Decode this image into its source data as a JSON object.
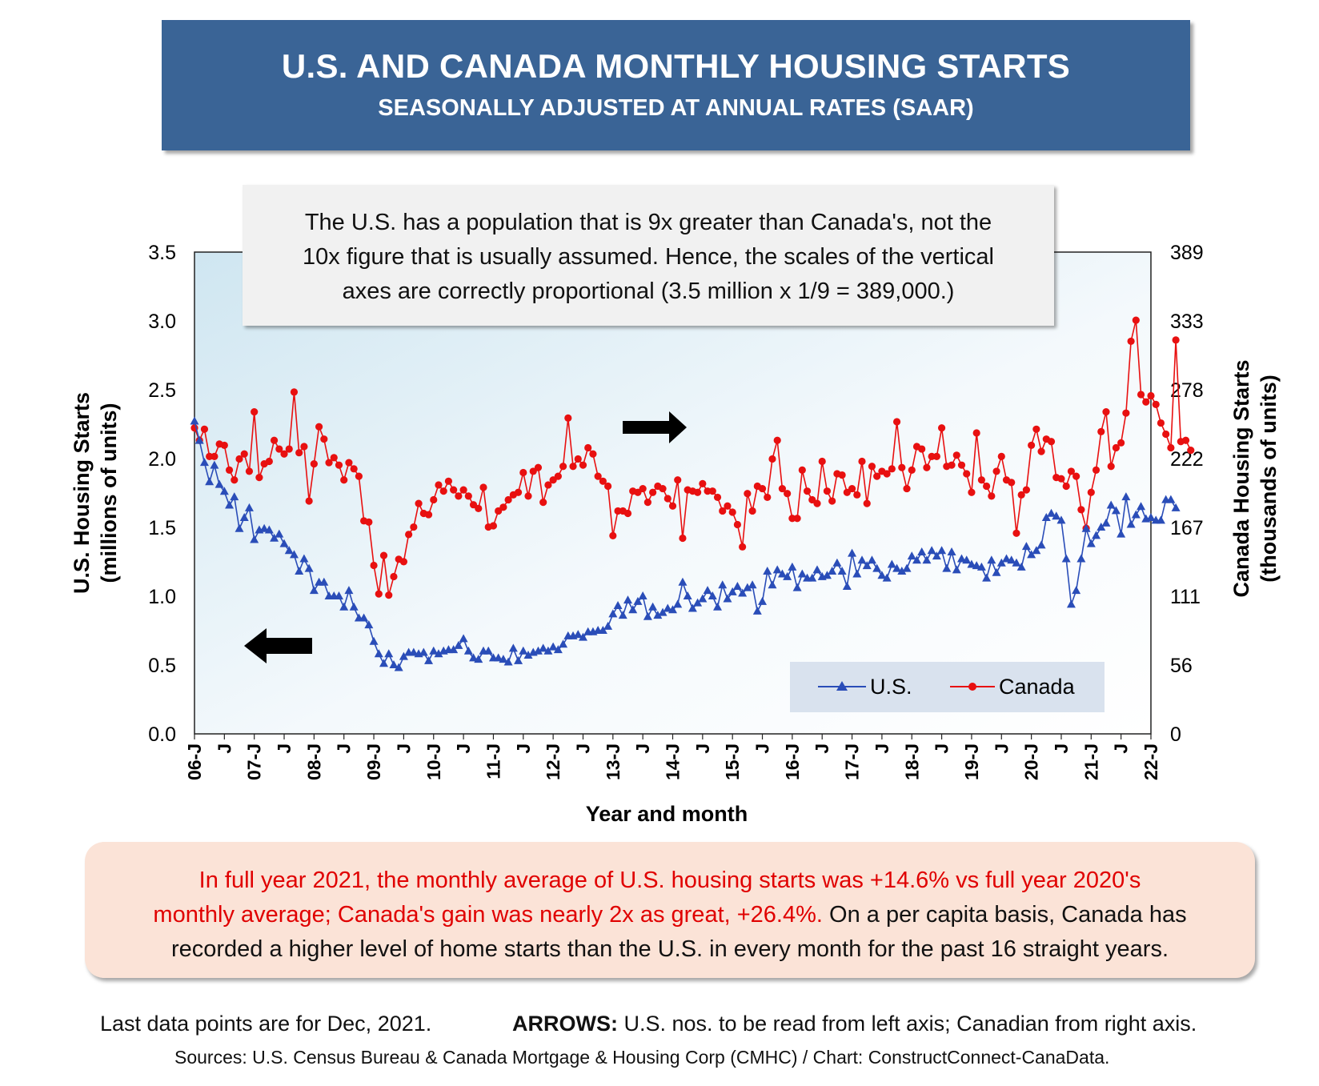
{
  "title": "U.S. AND CANADA MONTHLY HOUSING STARTS",
  "subtitle": "SEASONALLY ADJUSTED AT ANNUAL RATES (SAAR)",
  "note": {
    "line1": "The U.S. has a population that is 9x greater than Canada's, not the",
    "line2": "10x figure that is usually assumed. Hence, the scales of the  vertical",
    "line3": "axes are correctly proportional (3.5 million x 1/9 = 389,000.)"
  },
  "summary": {
    "red_line1": "In full year 2021, the monthly average of U.S. housing starts was +14.6% vs full year 2020's",
    "red_line2": "monthly average; Canada's gain was nearly 2x as great, +26.4%.",
    "black_line2": " On a per capita basis, Canada has",
    "black_line3": "recorded a higher level of home starts than the U.S. in every month for the past 16 straight  years."
  },
  "footer": {
    "last_data": "Last data points are for Dec, 2021.",
    "arrows_label": "ARROWS:",
    "arrows_text": " U.S. nos. to be read from left axis; Canadian from right axis.",
    "sources": "Sources: U.S. Census Bureau & Canada Mortgage & Housing Corp (CMHC) / Chart: ConstructConnect-CanaData."
  },
  "colors": {
    "title_bg": "#3a6496",
    "us_series": "#2a4db8",
    "canada_series": "#e81010",
    "summary_bg": "#fbe3d7"
  },
  "chart_data": {
    "type": "line",
    "xlabel": "Year and month",
    "ylabel_left_line1": "U.S. Housing Starts",
    "ylabel_left_line2": "(millions of units)",
    "ylabel_right_line1": "Canada Housing Starts",
    "ylabel_right_line2": "(thousands of units)",
    "x_ticks": [
      "06-J",
      "J",
      "07-J",
      "J",
      "08-J",
      "J",
      "09-J",
      "J",
      "10-J",
      "J",
      "11-J",
      "J",
      "12-J",
      "J",
      "13-J",
      "J",
      "14-J",
      "J",
      "15-J",
      "J",
      "16-J",
      "J",
      "17-J",
      "J",
      "18-J",
      "J",
      "19-J",
      "J",
      "20-J",
      "J",
      "21-J",
      "J",
      "22-J"
    ],
    "x_start": "2006-01",
    "x_end": "2022-01",
    "ylim_left": [
      0,
      3.5
    ],
    "yticks_left": [
      "0.0",
      "0.5",
      "1.0",
      "1.5",
      "2.0",
      "2.5",
      "3.0",
      "3.5"
    ],
    "ylim_right": [
      0,
      389
    ],
    "yticks_right": [
      "0",
      "56",
      "111",
      "167",
      "222",
      "278",
      "333",
      "389"
    ],
    "legend_position": "bottom-right",
    "series": [
      {
        "name": "U.S.",
        "marker": "triangle",
        "color": "#2a4db8",
        "axis": "left",
        "values": [
          2.27,
          2.13,
          1.97,
          1.83,
          1.95,
          1.81,
          1.76,
          1.66,
          1.72,
          1.49,
          1.57,
          1.64,
          1.41,
          1.48,
          1.49,
          1.48,
          1.42,
          1.45,
          1.38,
          1.33,
          1.3,
          1.18,
          1.27,
          1.2,
          1.04,
          1.1,
          1.1,
          1.0,
          1.0,
          1.0,
          0.92,
          1.04,
          0.92,
          0.84,
          0.84,
          0.79,
          0.67,
          0.58,
          0.51,
          0.58,
          0.5,
          0.48,
          0.56,
          0.59,
          0.59,
          0.58,
          0.59,
          0.53,
          0.6,
          0.58,
          0.6,
          0.61,
          0.61,
          0.64,
          0.69,
          0.6,
          0.55,
          0.54,
          0.6,
          0.6,
          0.55,
          0.55,
          0.54,
          0.52,
          0.62,
          0.53,
          0.6,
          0.57,
          0.59,
          0.6,
          0.62,
          0.6,
          0.63,
          0.61,
          0.65,
          0.71,
          0.71,
          0.72,
          0.7,
          0.74,
          0.74,
          0.75,
          0.75,
          0.78,
          0.87,
          0.93,
          0.86,
          0.97,
          0.9,
          0.96,
          1.0,
          0.85,
          0.92,
          0.86,
          0.88,
          0.91,
          0.9,
          0.94,
          1.1,
          1.0,
          0.91,
          0.95,
          0.98,
          1.04,
          1.0,
          0.92,
          1.08,
          0.98,
          1.03,
          1.07,
          1.02,
          1.06,
          1.08,
          0.89,
          0.96,
          1.18,
          1.08,
          1.19,
          1.16,
          1.14,
          1.21,
          1.06,
          1.16,
          1.13,
          1.13,
          1.19,
          1.14,
          1.15,
          1.18,
          1.24,
          1.18,
          1.07,
          1.31,
          1.16,
          1.26,
          1.22,
          1.26,
          1.2,
          1.15,
          1.13,
          1.23,
          1.2,
          1.18,
          1.2,
          1.29,
          1.26,
          1.32,
          1.26,
          1.33,
          1.29,
          1.33,
          1.2,
          1.32,
          1.19,
          1.27,
          1.26,
          1.23,
          1.22,
          1.21,
          1.13,
          1.26,
          1.17,
          1.24,
          1.27,
          1.26,
          1.24,
          1.21,
          1.36,
          1.3,
          1.33,
          1.37,
          1.57,
          1.6,
          1.58,
          1.55,
          1.27,
          0.94,
          1.04,
          1.27,
          1.49,
          1.38,
          1.44,
          1.5,
          1.53,
          1.66,
          1.62,
          1.45,
          1.72,
          1.52,
          1.59,
          1.65,
          1.56,
          1.57,
          1.55,
          1.55,
          1.7,
          1.7,
          1.64
        ]
      },
      {
        "name": "Canada",
        "marker": "circle",
        "color": "#e81010",
        "axis": "right",
        "values": [
          247,
          237,
          246,
          224,
          224,
          234,
          233,
          213,
          205,
          222,
          226,
          212,
          260,
          207,
          218,
          220,
          237,
          230,
          226,
          230,
          276,
          227,
          232,
          188,
          218,
          248,
          238,
          219,
          223,
          217,
          205,
          219,
          214,
          208,
          172,
          171,
          136,
          113,
          144,
          112,
          127,
          141,
          139,
          161,
          167,
          186,
          178,
          177,
          189,
          201,
          196,
          204,
          197,
          192,
          197,
          192,
          185,
          182,
          199,
          167,
          168,
          180,
          183,
          189,
          193,
          195,
          211,
          192,
          212,
          215,
          187,
          201,
          205,
          208,
          216,
          255,
          216,
          222,
          217,
          231,
          226,
          208,
          204,
          200,
          160,
          180,
          180,
          178,
          196,
          195,
          198,
          187,
          195,
          200,
          198,
          190,
          184,
          205,
          158,
          197,
          196,
          195,
          202,
          196,
          196,
          191,
          180,
          184,
          179,
          169,
          151,
          194,
          180,
          200,
          198,
          191,
          222,
          237,
          198,
          194,
          174,
          174,
          213,
          196,
          189,
          186,
          220,
          196,
          188,
          210,
          209,
          195,
          198,
          193,
          220,
          186,
          216,
          208,
          212,
          210,
          214,
          252,
          215,
          198,
          213,
          232,
          230,
          215,
          224,
          224,
          247,
          216,
          217,
          225,
          217,
          210,
          195,
          243,
          205,
          200,
          192,
          212,
          224,
          205,
          203,
          162,
          193,
          197,
          233,
          246,
          228,
          238,
          236,
          207,
          206,
          200,
          212,
          208,
          181,
          166,
          195,
          213,
          244,
          260,
          216,
          231,
          235,
          259,
          317,
          334,
          274,
          268,
          273,
          266,
          251,
          242,
          231,
          318,
          236,
          237,
          229
        ]
      }
    ]
  }
}
